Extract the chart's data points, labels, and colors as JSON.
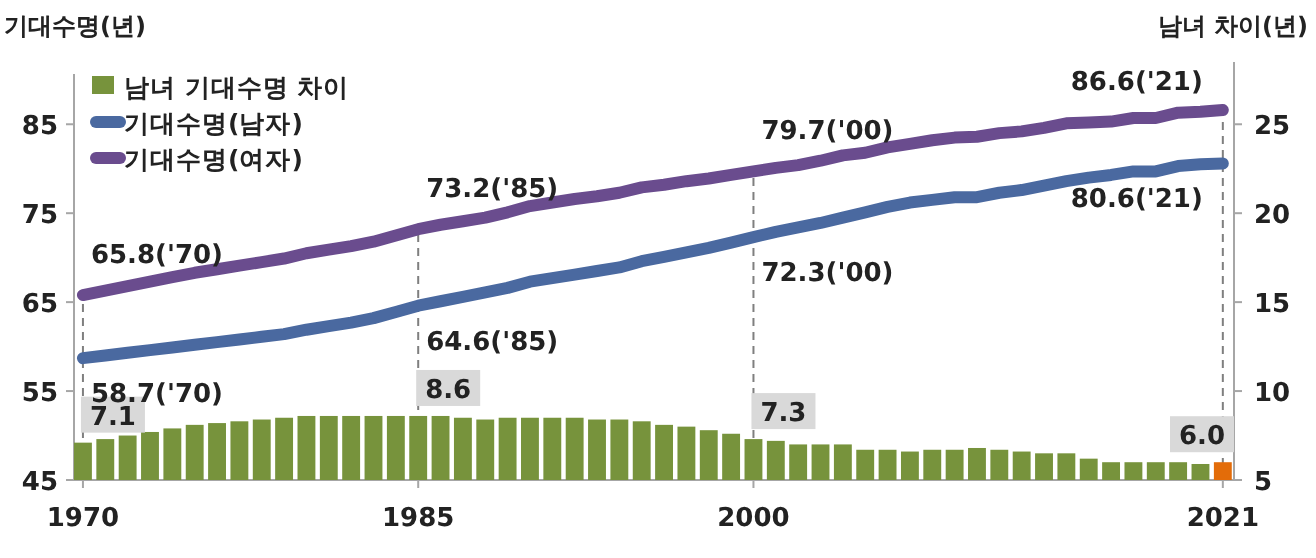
{
  "chart_data": {
    "type": "line",
    "ylabel": "기대수명(년)",
    "y2label": "남녀 차이(년)",
    "x": [
      1970,
      1971,
      1972,
      1973,
      1974,
      1975,
      1976,
      1977,
      1978,
      1979,
      1980,
      1981,
      1982,
      1983,
      1984,
      1985,
      1986,
      1987,
      1988,
      1989,
      1990,
      1991,
      1992,
      1993,
      1994,
      1995,
      1996,
      1997,
      1998,
      1999,
      2000,
      2001,
      2002,
      2003,
      2004,
      2005,
      2006,
      2007,
      2008,
      2009,
      2010,
      2011,
      2012,
      2013,
      2014,
      2015,
      2016,
      2017,
      2018,
      2019,
      2020,
      2021
    ],
    "xlim": [
      1969.6,
      2021.5
    ],
    "xticks": [
      1970,
      1985,
      2000,
      2021
    ],
    "ylim": [
      45,
      92
    ],
    "yticks": [
      45,
      55,
      65,
      75,
      85
    ],
    "y2lim": [
      5,
      28.5
    ],
    "y2ticks": [
      5,
      10,
      15,
      20,
      25
    ],
    "series": [
      {
        "name": "남녀 기대수명 차이",
        "type": "bar",
        "axis": "y2",
        "color": "#77933c",
        "colors": [
          "#77933c",
          "#77933c",
          "#77933c",
          "#77933c",
          "#77933c",
          "#77933c",
          "#77933c",
          "#77933c",
          "#77933c",
          "#77933c",
          "#77933c",
          "#77933c",
          "#77933c",
          "#77933c",
          "#77933c",
          "#77933c",
          "#77933c",
          "#77933c",
          "#77933c",
          "#77933c",
          "#77933c",
          "#77933c",
          "#77933c",
          "#77933c",
          "#77933c",
          "#77933c",
          "#77933c",
          "#77933c",
          "#77933c",
          "#77933c",
          "#77933c",
          "#77933c",
          "#77933c",
          "#77933c",
          "#77933c",
          "#77933c",
          "#77933c",
          "#77933c",
          "#77933c",
          "#77933c",
          "#77933c",
          "#77933c",
          "#77933c",
          "#77933c",
          "#77933c",
          "#77933c",
          "#77933c",
          "#77933c",
          "#77933c",
          "#77933c",
          "#77933c",
          "#e36c09"
        ],
        "values": [
          7.1,
          7.3,
          7.5,
          7.7,
          7.9,
          8.1,
          8.2,
          8.3,
          8.4,
          8.5,
          8.6,
          8.6,
          8.6,
          8.6,
          8.6,
          8.6,
          8.6,
          8.5,
          8.4,
          8.5,
          8.5,
          8.5,
          8.5,
          8.4,
          8.4,
          8.3,
          8.1,
          8.0,
          7.8,
          7.6,
          7.3,
          7.2,
          7.0,
          7.0,
          7.0,
          6.7,
          6.7,
          6.6,
          6.7,
          6.7,
          6.8,
          6.7,
          6.6,
          6.5,
          6.5,
          6.2,
          6.0,
          6.0,
          6.0,
          6.0,
          5.9,
          6.0
        ],
        "value_labels": [
          "7.1",
          null,
          null,
          null,
          null,
          null,
          null,
          null,
          null,
          null,
          null,
          null,
          null,
          null,
          null,
          "8.6",
          null,
          null,
          null,
          null,
          null,
          null,
          null,
          null,
          null,
          null,
          null,
          null,
          null,
          null,
          "7.3",
          null,
          null,
          null,
          null,
          null,
          null,
          null,
          null,
          null,
          null,
          null,
          null,
          null,
          null,
          null,
          null,
          null,
          null,
          null,
          null,
          "6.0"
        ]
      },
      {
        "name": "기대수명(남자)",
        "color": "#4a69a0",
        "values": [
          58.7,
          59.0,
          59.3,
          59.6,
          59.9,
          60.2,
          60.5,
          60.8,
          61.1,
          61.4,
          61.9,
          62.3,
          62.7,
          63.2,
          63.9,
          64.6,
          65.1,
          65.6,
          66.1,
          66.6,
          67.3,
          67.7,
          68.1,
          68.5,
          68.9,
          69.6,
          70.1,
          70.6,
          71.1,
          71.7,
          72.3,
          72.9,
          73.4,
          73.9,
          74.5,
          75.1,
          75.7,
          76.2,
          76.5,
          76.8,
          76.8,
          77.3,
          77.6,
          78.1,
          78.6,
          79.0,
          79.3,
          79.7,
          79.7,
          80.3,
          80.5,
          80.6
        ]
      },
      {
        "name": "기대수명(여자)",
        "color": "#6a4c8e",
        "values": [
          65.8,
          66.3,
          66.8,
          67.3,
          67.8,
          68.3,
          68.7,
          69.1,
          69.5,
          69.9,
          70.5,
          70.9,
          71.3,
          71.8,
          72.5,
          73.2,
          73.7,
          74.1,
          74.5,
          75.1,
          75.8,
          76.2,
          76.6,
          76.9,
          77.3,
          77.9,
          78.2,
          78.6,
          78.9,
          79.3,
          79.7,
          80.1,
          80.4,
          80.9,
          81.5,
          81.8,
          82.4,
          82.8,
          83.2,
          83.5,
          83.6,
          84.0,
          84.2,
          84.6,
          85.1,
          85.2,
          85.3,
          85.7,
          85.7,
          86.3,
          86.4,
          86.6
        ]
      }
    ],
    "ref_lines": [
      {
        "axis": "x",
        "value": 1970,
        "color": "#7f7f7f",
        "line_style": "dashed"
      },
      {
        "axis": "x",
        "value": 1985,
        "color": "#7f7f7f",
        "line_style": "dashed"
      },
      {
        "axis": "x",
        "value": 2000,
        "color": "#7f7f7f",
        "line_style": "dashed"
      },
      {
        "axis": "x",
        "value": 2021,
        "color": "#7f7f7f",
        "line_style": "dashed"
      }
    ],
    "annotations": [
      {
        "text": "65.8('70)",
        "x": 1970,
        "y": 65.8
      },
      {
        "text": "73.2('85)",
        "x": 1985,
        "y": 73.2
      },
      {
        "text": "79.7('00)",
        "x": 2000,
        "y": 79.7
      },
      {
        "text": "86.6('21)",
        "x": 2021,
        "y": 86.6
      },
      {
        "text": "58.7('70)",
        "x": 1970,
        "y": 58.7
      },
      {
        "text": "64.6('85)",
        "x": 1985,
        "y": 64.6
      },
      {
        "text": "72.3('00)",
        "x": 2000,
        "y": 72.3
      },
      {
        "text": "80.6('21)",
        "x": 2021,
        "y": 80.6
      }
    ],
    "legend": "top left",
    "grid": false,
    "marker": "none",
    "line_style": "solid"
  }
}
